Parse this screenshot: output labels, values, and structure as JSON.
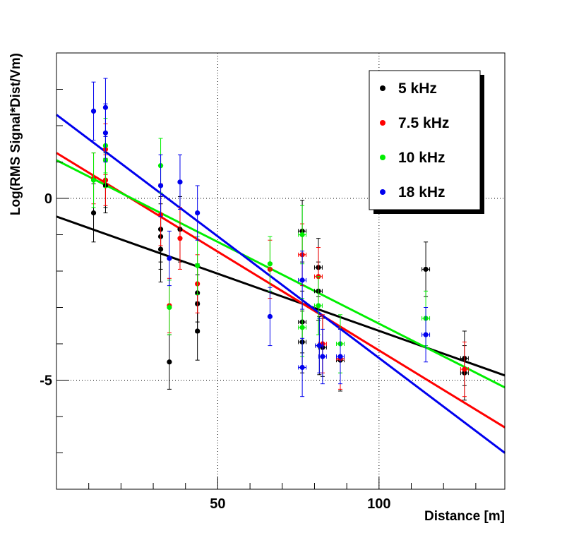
{
  "chart_data": {
    "type": "scatter",
    "title": "",
    "xlabel": "Distance [m]",
    "ylabel": "Log(RMS Signal*Dist/Vm)",
    "xlim": [
      0,
      139
    ],
    "ylim": [
      -8,
      4
    ],
    "x_ticks": [
      50,
      100
    ],
    "y_ticks": [
      0,
      -5
    ],
    "x_tick_labels": [
      "50",
      "100"
    ],
    "y_tick_labels": [
      "0",
      "-5"
    ],
    "grid": true,
    "legend_position": "top-right",
    "series": [
      {
        "name": "5 kHz",
        "color": "#000000",
        "points": [
          {
            "x": 11.5,
            "y": -0.4,
            "yerr": 0.8
          },
          {
            "x": 15.2,
            "y": 0.35,
            "yerr": 0.75
          },
          {
            "x": 15.2,
            "y": 0.5,
            "yerr": 0.75
          },
          {
            "x": 32.3,
            "y": -0.85,
            "yerr": 0.9
          },
          {
            "x": 32.3,
            "y": -1.05,
            "yerr": 0.9
          },
          {
            "x": 32.3,
            "y": -1.4,
            "yerr": 0.9
          },
          {
            "x": 35.0,
            "y": -4.5,
            "yerr": 0.75
          },
          {
            "x": 38.3,
            "y": -0.85,
            "yerr": 0.9
          },
          {
            "x": 43.7,
            "y": -2.6,
            "yerr": 0.8
          },
          {
            "x": 43.7,
            "y": -2.9,
            "yerr": 0.8
          },
          {
            "x": 43.7,
            "y": -3.65,
            "yerr": 0.8
          },
          {
            "x": 76.2,
            "y": -0.9,
            "yerr": 0.85,
            "xerr": 1.2
          },
          {
            "x": 76.2,
            "y": -3.4,
            "yerr": 0.85,
            "xerr": 1.2
          },
          {
            "x": 76.2,
            "y": -3.95,
            "yerr": 0.85,
            "xerr": 1.2
          },
          {
            "x": 81.2,
            "y": -1.9,
            "yerr": 0.8,
            "xerr": 1.2
          },
          {
            "x": 81.2,
            "y": -2.55,
            "yerr": 0.8,
            "xerr": 1.2
          },
          {
            "x": 81.5,
            "y": -4.05,
            "yerr": 0.8,
            "xerr": 1.2
          },
          {
            "x": 82.5,
            "y": -4.1,
            "yerr": 0.8,
            "xerr": 1.2
          },
          {
            "x": 88.0,
            "y": -4.45,
            "yerr": 0.85,
            "xerr": 1.2
          },
          {
            "x": 114.5,
            "y": -1.95,
            "yerr": 0.75,
            "xerr": 1.2
          },
          {
            "x": 126.5,
            "y": -4.4,
            "yerr": 0.75,
            "xerr": 1.2
          },
          {
            "x": 126.5,
            "y": -4.8,
            "yerr": 0.75,
            "xerr": 1.2
          }
        ],
        "fit_line": {
          "x": [
            0,
            139
          ],
          "y": [
            -0.5,
            -4.87
          ]
        }
      },
      {
        "name": "7.5 kHz",
        "color": "#ff0000",
        "points": [
          {
            "x": 11.5,
            "y": 0.55,
            "yerr": 0.7
          },
          {
            "x": 15.2,
            "y": 0.5,
            "yerr": 0.7
          },
          {
            "x": 15.2,
            "y": 1.35,
            "yerr": 0.7
          },
          {
            "x": 32.3,
            "y": -0.45,
            "yerr": 0.85
          },
          {
            "x": 35.0,
            "y": -2.95,
            "yerr": 0.75
          },
          {
            "x": 38.3,
            "y": -1.1,
            "yerr": 0.85
          },
          {
            "x": 43.7,
            "y": -2.35,
            "yerr": 0.8
          },
          {
            "x": 66.2,
            "y": -1.95,
            "yerr": 0.8
          },
          {
            "x": 76.2,
            "y": -1.55,
            "yerr": 0.85,
            "xerr": 1.2
          },
          {
            "x": 81.2,
            "y": -2.15,
            "yerr": 0.8,
            "xerr": 1.2
          },
          {
            "x": 82.5,
            "y": -4.0,
            "yerr": 0.8,
            "xerr": 1.2
          },
          {
            "x": 88.0,
            "y": -4.4,
            "yerr": 0.85,
            "xerr": 1.2
          },
          {
            "x": 126.5,
            "y": -4.7,
            "yerr": 0.75,
            "xerr": 1.2
          }
        ],
        "fit_line": {
          "x": [
            0,
            139
          ],
          "y": [
            1.25,
            -6.3
          ]
        }
      },
      {
        "name": "10 kHz",
        "color": "#00ee00",
        "points": [
          {
            "x": 11.5,
            "y": 0.5,
            "yerr": 0.75
          },
          {
            "x": 15.2,
            "y": 1.05,
            "yerr": 0.75
          },
          {
            "x": 15.2,
            "y": 1.45,
            "yerr": 0.75
          },
          {
            "x": 32.3,
            "y": 0.9,
            "yerr": 0.75
          },
          {
            "x": 35.0,
            "y": -3.0,
            "yerr": 0.75
          },
          {
            "x": 43.7,
            "y": -1.85,
            "yerr": 0.8
          },
          {
            "x": 66.2,
            "y": -1.8,
            "yerr": 0.75
          },
          {
            "x": 76.2,
            "y": -1.0,
            "yerr": 0.8,
            "xerr": 1.2
          },
          {
            "x": 76.2,
            "y": -3.55,
            "yerr": 0.8,
            "xerr": 1.2
          },
          {
            "x": 81.2,
            "y": -2.95,
            "yerr": 0.8,
            "xerr": 1.2
          },
          {
            "x": 88.0,
            "y": -4.0,
            "yerr": 0.8,
            "xerr": 1.2
          },
          {
            "x": 114.5,
            "y": -3.3,
            "yerr": 0.75,
            "xerr": 1.2
          }
        ],
        "fit_line": {
          "x": [
            0,
            139
          ],
          "y": [
            1.05,
            -5.2
          ]
        }
      },
      {
        "name": "18 kHz",
        "color": "#0000ee",
        "points": [
          {
            "x": 11.5,
            "y": 2.4,
            "yerr": 0.8
          },
          {
            "x": 15.2,
            "y": 1.8,
            "yerr": 0.8
          },
          {
            "x": 15.2,
            "y": 2.5,
            "yerr": 0.8
          },
          {
            "x": 32.3,
            "y": 0.35,
            "yerr": 0.85
          },
          {
            "x": 35.0,
            "y": -1.65,
            "yerr": 0.75
          },
          {
            "x": 38.3,
            "y": 0.45,
            "yerr": 0.75
          },
          {
            "x": 43.7,
            "y": -0.4,
            "yerr": 0.75
          },
          {
            "x": 66.2,
            "y": -3.25,
            "yerr": 0.8
          },
          {
            "x": 76.2,
            "y": -2.25,
            "yerr": 0.8,
            "xerr": 1.2
          },
          {
            "x": 76.2,
            "y": -4.65,
            "yerr": 0.8,
            "xerr": 1.2
          },
          {
            "x": 81.5,
            "y": -4.05,
            "yerr": 0.75,
            "xerr": 1.2
          },
          {
            "x": 82.5,
            "y": -4.35,
            "yerr": 0.75,
            "xerr": 1.2
          },
          {
            "x": 88.0,
            "y": -4.35,
            "yerr": 0.75,
            "xerr": 1.2
          },
          {
            "x": 114.5,
            "y": -3.75,
            "yerr": 0.75,
            "xerr": 1.2
          }
        ],
        "fit_line": {
          "x": [
            0,
            139
          ],
          "y": [
            2.3,
            -7.0
          ]
        }
      }
    ]
  }
}
